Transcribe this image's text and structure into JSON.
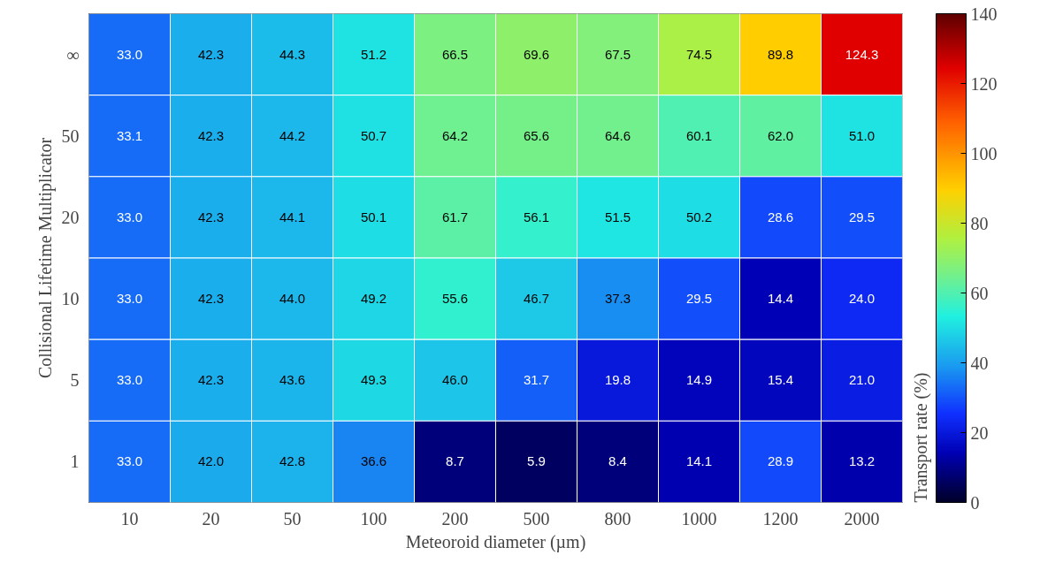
{
  "chart_data": {
    "type": "heatmap",
    "xlabel": "Meteoroid diameter (µm)",
    "ylabel": "Collisional Lifetime Multiplicator",
    "clabel": "Transport rate (%)",
    "categories": [
      "10",
      "20",
      "50",
      "100",
      "200",
      "500",
      "800",
      "1000",
      "1200",
      "2000"
    ],
    "y_categories": [
      "∞",
      "50",
      "20",
      "10",
      "5",
      "1"
    ],
    "cells": [
      [
        33.0,
        42.3,
        44.3,
        51.2,
        66.5,
        69.6,
        67.5,
        74.5,
        89.8,
        124.3
      ],
      [
        33.1,
        42.3,
        44.2,
        50.7,
        64.2,
        65.6,
        64.6,
        60.1,
        62.0,
        51.0
      ],
      [
        33.0,
        42.3,
        44.1,
        50.1,
        61.7,
        56.1,
        51.5,
        50.2,
        28.6,
        29.5
      ],
      [
        33.0,
        42.3,
        44.0,
        49.2,
        55.6,
        46.7,
        37.3,
        29.5,
        14.4,
        24.0
      ],
      [
        33.0,
        42.3,
        43.6,
        49.3,
        46.0,
        31.7,
        19.8,
        14.9,
        15.4,
        21.0
      ],
      [
        33.0,
        42.0,
        42.8,
        36.6,
        8.7,
        5.9,
        8.4,
        14.1,
        28.9,
        13.2
      ]
    ],
    "cell_labels": [
      [
        "33.0",
        "42.3",
        "44.3",
        "51.2",
        "66.5",
        "69.6",
        "67.5",
        "74.5",
        "89.8",
        "124.3"
      ],
      [
        "33.1",
        "42.3",
        "44.2",
        "50.7",
        "64.2",
        "65.6",
        "64.6",
        "60.1",
        "62.0",
        "51.0"
      ],
      [
        "33.0",
        "42.3",
        "44.1",
        "50.1",
        "61.7",
        "56.1",
        "51.5",
        "50.2",
        "28.6",
        "29.5"
      ],
      [
        "33.0",
        "42.3",
        "44.0",
        "49.2",
        "55.6",
        "46.7",
        "37.3",
        "29.5",
        "14.4",
        "24.0"
      ],
      [
        "33.0",
        "42.3",
        "43.6",
        "49.3",
        "46.0",
        "31.7",
        "19.8",
        "14.9",
        "15.4",
        "21.0"
      ],
      [
        "33.0",
        "42.0",
        "42.8",
        "36.6",
        "8.7",
        "5.9",
        "8.4",
        "14.1",
        "28.9",
        "13.2"
      ]
    ],
    "data_labels": true,
    "clim": [
      0,
      140
    ],
    "cticks": [
      0,
      20,
      40,
      60,
      80,
      100,
      120,
      140
    ]
  }
}
